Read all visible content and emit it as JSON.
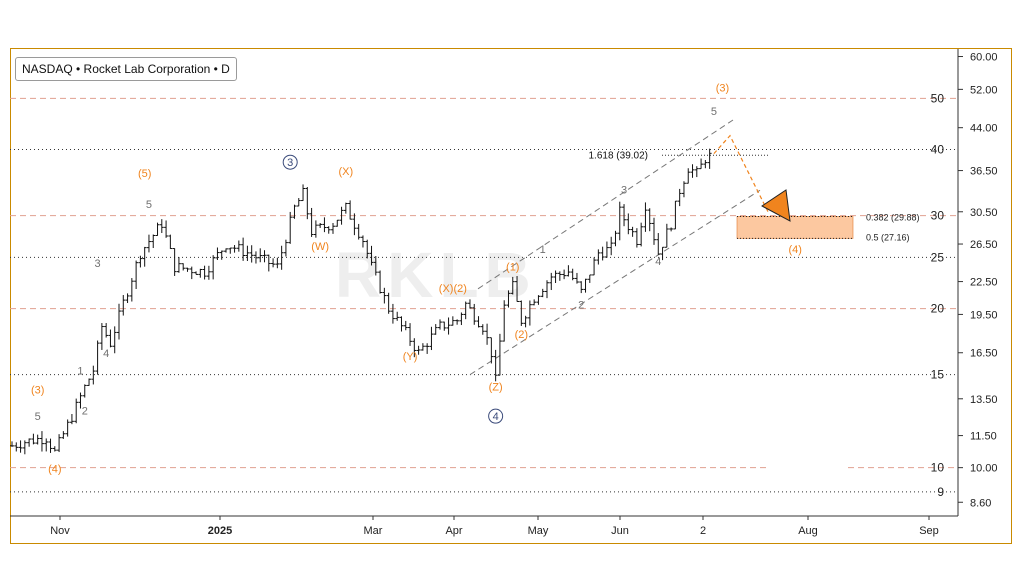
{
  "header": {
    "title": "NASDAQ • Rocket Lab Corporation • D"
  },
  "watermark": "RKLB",
  "colors": {
    "price": "#111111",
    "orange": "#f0841e",
    "grey_label": "#707070",
    "dashed_level": "#e1a090",
    "frame": "#c98a00",
    "zone_fill": "#fcc8a0"
  },
  "chart_data": {
    "type": "ohlc",
    "scale": "log",
    "ylim": [
      8.1,
      62
    ],
    "x_ticks": [
      "Nov",
      "2025",
      "Mar",
      "Apr",
      "May",
      "Jun",
      "2",
      "Aug",
      "Sep"
    ],
    "y_ticks": [
      "60.00",
      "52.00",
      "44.00",
      "36.50",
      "30.50",
      "26.50",
      "22.50",
      "19.50",
      "16.50",
      "13.50",
      "11.50",
      "10.00",
      "8.60"
    ],
    "levels": [
      {
        "price": 50,
        "label": "50",
        "style": "dashed"
      },
      {
        "price": 40,
        "label": "40",
        "style": "dotted"
      },
      {
        "price": 30,
        "label": "30",
        "style": "dashed"
      },
      {
        "price": 25,
        "label": "25",
        "style": "dotted"
      },
      {
        "price": 20,
        "label": "20",
        "style": "dashed"
      },
      {
        "price": 15,
        "label": "15",
        "style": "dotted"
      },
      {
        "price": 10,
        "label": "10",
        "style": "dashed"
      },
      {
        "price": 9,
        "label": "9",
        "style": "dotted"
      }
    ],
    "fib": [
      {
        "label": "1.618 (39.02)",
        "price": 39.02
      },
      {
        "label": "0.382 (29.88)",
        "price": 29.88
      },
      {
        "label": "0.5 (27.16)",
        "price": 27.16
      }
    ],
    "path": [
      [
        0,
        11.0
      ],
      [
        3,
        11.2
      ],
      [
        8,
        11.4
      ],
      [
        10,
        10.7
      ],
      [
        14,
        12.5
      ],
      [
        17,
        14.2
      ],
      [
        19,
        15.3
      ],
      [
        21,
        18.5
      ],
      [
        23,
        17.2
      ],
      [
        26,
        20.5
      ],
      [
        30,
        25.5
      ],
      [
        35,
        29.0
      ],
      [
        38,
        24.0
      ],
      [
        45,
        23.5
      ],
      [
        50,
        26.5
      ],
      [
        55,
        25.5
      ],
      [
        62,
        24.0
      ],
      [
        66,
        31.0
      ],
      [
        68,
        33.0
      ],
      [
        70,
        28.0
      ],
      [
        75,
        29.0
      ],
      [
        78,
        31.0
      ],
      [
        82,
        27.0
      ],
      [
        84,
        24.0
      ],
      [
        88,
        20.0
      ],
      [
        92,
        18.0
      ],
      [
        95,
        16.5
      ],
      [
        100,
        18.5
      ],
      [
        104,
        19.0
      ],
      [
        106,
        20.4
      ],
      [
        110,
        18.5
      ],
      [
        112,
        16.5
      ],
      [
        113,
        14.6
      ],
      [
        115,
        20.5
      ],
      [
        117,
        22.0
      ],
      [
        119,
        19.0
      ],
      [
        122,
        21.0
      ],
      [
        126,
        23.0
      ],
      [
        130,
        23.5
      ],
      [
        133,
        21.5
      ],
      [
        137,
        25.5
      ],
      [
        140,
        26.0
      ],
      [
        142,
        30.5
      ],
      [
        146,
        27.0
      ],
      [
        148,
        31.5
      ],
      [
        151,
        25.5
      ],
      [
        154,
        29.0
      ],
      [
        156,
        33.5
      ],
      [
        158,
        37.0
      ],
      [
        160,
        36.0
      ],
      [
        162,
        38.5
      ],
      [
        164,
        39.2
      ]
    ],
    "wave_labels": [
      {
        "text": "(4)",
        "i": 10,
        "price": 9.8,
        "color": "orange"
      },
      {
        "text": "5",
        "i": 6,
        "price": 12.3,
        "color": "grey"
      },
      {
        "text": "(3)",
        "i": 6,
        "price": 13.8,
        "color": "orange"
      },
      {
        "text": "1",
        "i": 16,
        "price": 15.0,
        "color": "grey"
      },
      {
        "text": "2",
        "i": 17,
        "price": 12.6,
        "color": "grey"
      },
      {
        "text": "3",
        "i": 20,
        "price": 24.0,
        "color": "grey"
      },
      {
        "text": "4",
        "i": 22,
        "price": 16.2,
        "color": "grey"
      },
      {
        "text": "5",
        "i": 32,
        "price": 31.0,
        "color": "grey"
      },
      {
        "text": "(5)",
        "i": 31,
        "price": 35.5,
        "color": "orange"
      },
      {
        "text": "3",
        "i": 65,
        "price": 37.2,
        "color": "circle"
      },
      {
        "text": "(W)",
        "i": 72,
        "price": 25.8,
        "color": "orange"
      },
      {
        "text": "(X)",
        "i": 78,
        "price": 35.8,
        "color": "orange"
      },
      {
        "text": "(Y)",
        "i": 93,
        "price": 16.0,
        "color": "orange"
      },
      {
        "text": "(X)(2)",
        "i": 103,
        "price": 21.5,
        "color": "orange"
      },
      {
        "text": "(Z)",
        "i": 113,
        "price": 14.0,
        "color": "orange"
      },
      {
        "text": "4",
        "i": 113,
        "price": 12.3,
        "color": "circle"
      },
      {
        "text": "(1)",
        "i": 117,
        "price": 23.6,
        "color": "orange"
      },
      {
        "text": "(2)",
        "i": 119,
        "price": 17.6,
        "color": "orange"
      },
      {
        "text": "1",
        "i": 124,
        "price": 25.5,
        "color": "grey"
      },
      {
        "text": "2",
        "i": 133,
        "price": 20.0,
        "color": "grey"
      },
      {
        "text": "3",
        "i": 143,
        "price": 33.0,
        "color": "grey"
      },
      {
        "text": "4",
        "i": 151,
        "price": 24.2,
        "color": "grey"
      },
      {
        "text": "5",
        "i": 164,
        "price": 46.5,
        "color": "grey"
      },
      {
        "text": "(3)",
        "i": 166,
        "price": 51.5,
        "color": "orange"
      },
      {
        "text": "(4)",
        "i": 183,
        "price": 25.5,
        "color": "orange"
      }
    ]
  }
}
